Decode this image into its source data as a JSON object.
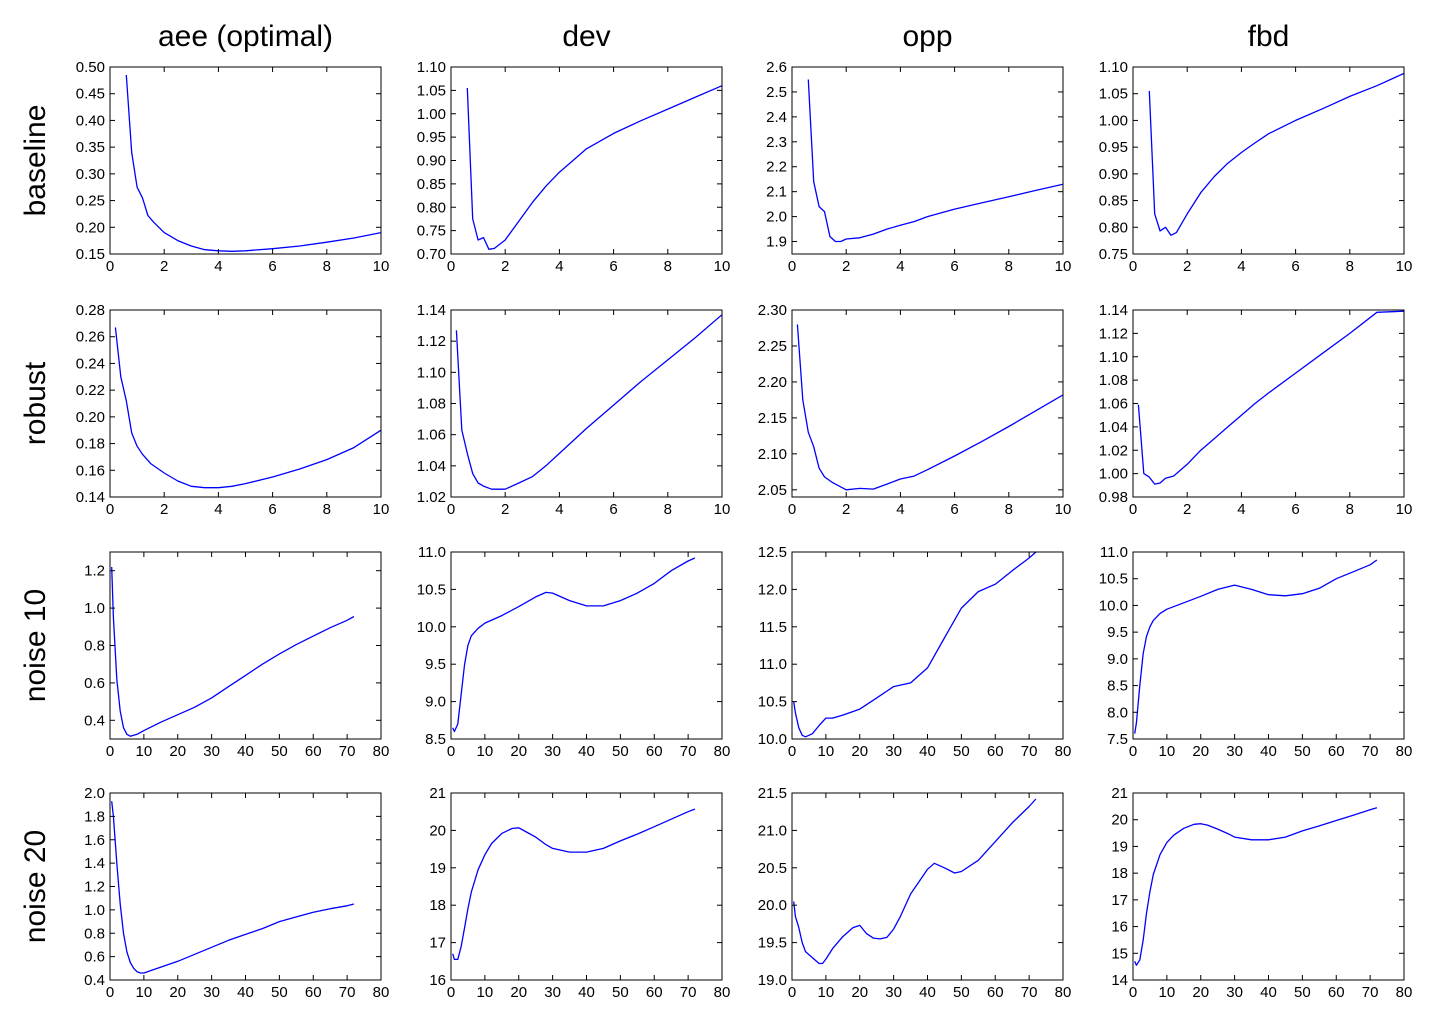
{
  "figure": {
    "column_titles": [
      "aee (optimal)",
      "dev",
      "opp",
      "fbd"
    ],
    "row_titles": [
      "baseline",
      "robust",
      "noise 10",
      "noise 20"
    ],
    "line_color": "#0000ff",
    "grid": false,
    "legend": "none"
  },
  "chart_data": [
    {
      "type": "line",
      "row": 0,
      "col": 0,
      "xlim": [
        0,
        10
      ],
      "ylim": [
        0.15,
        0.5
      ],
      "xticks": [
        0,
        2,
        4,
        6,
        8,
        10
      ],
      "yticks": [
        0.15,
        0.2,
        0.25,
        0.3,
        0.35,
        0.4,
        0.45,
        0.5
      ],
      "ytick_decimals": 2,
      "x": [
        0.6,
        0.8,
        1.0,
        1.2,
        1.4,
        1.6,
        2.0,
        2.5,
        3.0,
        3.5,
        4.0,
        4.5,
        5.0,
        6.0,
        7.0,
        8.0,
        9.0,
        10.0
      ],
      "y": [
        0.485,
        0.34,
        0.275,
        0.255,
        0.222,
        0.21,
        0.19,
        0.175,
        0.165,
        0.158,
        0.156,
        0.155,
        0.156,
        0.16,
        0.165,
        0.172,
        0.18,
        0.19
      ]
    },
    {
      "type": "line",
      "row": 0,
      "col": 1,
      "xlim": [
        0,
        10
      ],
      "ylim": [
        0.7,
        1.1
      ],
      "xticks": [
        0,
        2,
        4,
        6,
        8,
        10
      ],
      "yticks": [
        0.7,
        0.75,
        0.8,
        0.85,
        0.9,
        0.95,
        1.0,
        1.05,
        1.1
      ],
      "ytick_decimals": 2,
      "x": [
        0.6,
        0.8,
        1.0,
        1.2,
        1.4,
        1.6,
        2.0,
        2.5,
        3.0,
        3.5,
        4.0,
        4.5,
        5.0,
        6.0,
        7.0,
        8.0,
        9.0,
        10.0
      ],
      "y": [
        1.055,
        0.775,
        0.73,
        0.735,
        0.71,
        0.712,
        0.73,
        0.77,
        0.81,
        0.845,
        0.875,
        0.9,
        0.925,
        0.958,
        0.985,
        1.01,
        1.035,
        1.06
      ]
    },
    {
      "type": "line",
      "row": 0,
      "col": 2,
      "xlim": [
        0,
        10
      ],
      "ylim": [
        1.85,
        2.6
      ],
      "xticks": [
        0,
        2,
        4,
        6,
        8,
        10
      ],
      "yticks": [
        1.9,
        2.0,
        2.1,
        2.2,
        2.3,
        2.4,
        2.5,
        2.6
      ],
      "ytick_decimals": 1,
      "x": [
        0.6,
        0.8,
        1.0,
        1.2,
        1.4,
        1.6,
        1.8,
        2.0,
        2.5,
        3.0,
        3.5,
        4.0,
        4.5,
        5.0,
        6.0,
        7.0,
        8.0,
        9.0,
        10.0
      ],
      "y": [
        2.55,
        2.14,
        2.04,
        2.02,
        1.92,
        1.9,
        1.9,
        1.91,
        1.915,
        1.93,
        1.95,
        1.965,
        1.98,
        2.0,
        2.03,
        2.055,
        2.08,
        2.105,
        2.13
      ]
    },
    {
      "type": "line",
      "row": 0,
      "col": 3,
      "xlim": [
        0,
        10
      ],
      "ylim": [
        0.75,
        1.1
      ],
      "xticks": [
        0,
        2,
        4,
        6,
        8,
        10
      ],
      "yticks": [
        0.75,
        0.8,
        0.85,
        0.9,
        0.95,
        1.0,
        1.05,
        1.1
      ],
      "ytick_decimals": 2,
      "x": [
        0.6,
        0.8,
        1.0,
        1.2,
        1.4,
        1.6,
        2.0,
        2.5,
        3.0,
        3.5,
        4.0,
        4.5,
        5.0,
        6.0,
        7.0,
        8.0,
        9.0,
        10.0
      ],
      "y": [
        1.055,
        0.825,
        0.793,
        0.8,
        0.785,
        0.79,
        0.825,
        0.865,
        0.895,
        0.92,
        0.94,
        0.958,
        0.975,
        1.0,
        1.022,
        1.045,
        1.065,
        1.088
      ]
    },
    {
      "type": "line",
      "row": 1,
      "col": 0,
      "xlim": [
        0,
        10
      ],
      "ylim": [
        0.14,
        0.28
      ],
      "xticks": [
        0,
        2,
        4,
        6,
        8,
        10
      ],
      "yticks": [
        0.14,
        0.16,
        0.18,
        0.2,
        0.22,
        0.24,
        0.26,
        0.28
      ],
      "ytick_decimals": 2,
      "x": [
        0.2,
        0.4,
        0.6,
        0.8,
        1.0,
        1.2,
        1.5,
        2.0,
        2.5,
        3.0,
        3.5,
        4.0,
        4.5,
        5.0,
        6.0,
        7.0,
        8.0,
        9.0,
        10.0
      ],
      "y": [
        0.267,
        0.23,
        0.212,
        0.188,
        0.178,
        0.172,
        0.165,
        0.158,
        0.152,
        0.148,
        0.147,
        0.147,
        0.148,
        0.15,
        0.155,
        0.161,
        0.168,
        0.177,
        0.19
      ]
    },
    {
      "type": "line",
      "row": 1,
      "col": 1,
      "xlim": [
        0,
        10
      ],
      "ylim": [
        1.02,
        1.14
      ],
      "xticks": [
        0,
        2,
        4,
        6,
        8,
        10
      ],
      "yticks": [
        1.02,
        1.04,
        1.06,
        1.08,
        1.1,
        1.12,
        1.14
      ],
      "ytick_decimals": 2,
      "x": [
        0.2,
        0.4,
        0.6,
        0.8,
        1.0,
        1.2,
        1.5,
        2.0,
        2.5,
        3.0,
        3.5,
        4.0,
        4.5,
        5.0,
        6.0,
        7.0,
        8.0,
        9.0,
        10.0
      ],
      "y": [
        1.127,
        1.063,
        1.048,
        1.035,
        1.029,
        1.027,
        1.025,
        1.025,
        1.029,
        1.033,
        1.04,
        1.048,
        1.056,
        1.064,
        1.079,
        1.094,
        1.108,
        1.122,
        1.137
      ]
    },
    {
      "type": "line",
      "row": 1,
      "col": 2,
      "xlim": [
        0,
        10
      ],
      "ylim": [
        2.04,
        2.3
      ],
      "xticks": [
        0,
        2,
        4,
        6,
        8,
        10
      ],
      "yticks": [
        2.05,
        2.1,
        2.15,
        2.2,
        2.25,
        2.3
      ],
      "ytick_decimals": 2,
      "x": [
        0.2,
        0.4,
        0.6,
        0.8,
        1.0,
        1.2,
        1.5,
        2.0,
        2.5,
        3.0,
        3.5,
        4.0,
        4.5,
        5.0,
        6.0,
        7.0,
        8.0,
        9.0,
        10.0
      ],
      "y": [
        2.28,
        2.175,
        2.13,
        2.11,
        2.08,
        2.068,
        2.06,
        2.05,
        2.052,
        2.051,
        2.058,
        2.065,
        2.069,
        2.078,
        2.097,
        2.117,
        2.138,
        2.16,
        2.182
      ]
    },
    {
      "type": "line",
      "row": 1,
      "col": 3,
      "xlim": [
        0,
        10
      ],
      "ylim": [
        0.98,
        1.14
      ],
      "xticks": [
        0,
        2,
        4,
        6,
        8,
        10
      ],
      "yticks": [
        0.98,
        1.0,
        1.02,
        1.04,
        1.06,
        1.08,
        1.1,
        1.12,
        1.14
      ],
      "ytick_decimals": 2,
      "x": [
        0.2,
        0.4,
        0.6,
        0.8,
        1.0,
        1.2,
        1.5,
        2.0,
        2.5,
        3.0,
        3.5,
        4.0,
        4.5,
        5.0,
        6.0,
        7.0,
        8.0,
        9.0,
        10.0
      ],
      "y": [
        1.059,
        1.0,
        0.997,
        0.991,
        0.992,
        0.996,
        0.998,
        1.008,
        1.02,
        1.03,
        1.04,
        1.05,
        1.06,
        1.069,
        1.086,
        1.103,
        1.12,
        1.138,
        1.139
      ]
    },
    {
      "type": "line",
      "row": 2,
      "col": 0,
      "xlim": [
        0,
        80
      ],
      "ylim": [
        0.3,
        1.3
      ],
      "xticks": [
        0,
        10,
        20,
        30,
        40,
        50,
        60,
        70,
        80
      ],
      "yticks": [
        0.4,
        0.6,
        0.8,
        1.0,
        1.2
      ],
      "ytick_decimals": 1,
      "x": [
        0.5,
        1,
        2,
        3,
        4,
        5,
        6,
        8,
        10,
        15,
        20,
        25,
        30,
        35,
        40,
        45,
        50,
        55,
        60,
        65,
        70,
        72
      ],
      "y": [
        1.22,
        0.95,
        0.62,
        0.45,
        0.36,
        0.325,
        0.315,
        0.325,
        0.345,
        0.39,
        0.43,
        0.47,
        0.52,
        0.58,
        0.64,
        0.7,
        0.755,
        0.805,
        0.85,
        0.895,
        0.935,
        0.955
      ]
    },
    {
      "type": "line",
      "row": 2,
      "col": 1,
      "xlim": [
        0,
        80
      ],
      "ylim": [
        8.5,
        11.0
      ],
      "xticks": [
        0,
        10,
        20,
        30,
        40,
        50,
        60,
        70,
        80
      ],
      "yticks": [
        8.5,
        9.0,
        9.5,
        10.0,
        10.5,
        11.0
      ],
      "ytick_decimals": 1,
      "x": [
        0.5,
        1,
        2,
        3,
        4,
        5,
        6,
        8,
        10,
        15,
        20,
        25,
        28,
        30,
        35,
        40,
        45,
        50,
        55,
        60,
        65,
        70,
        72
      ],
      "y": [
        8.65,
        8.6,
        8.7,
        9.1,
        9.5,
        9.75,
        9.88,
        9.98,
        10.05,
        10.15,
        10.27,
        10.4,
        10.46,
        10.45,
        10.35,
        10.28,
        10.28,
        10.35,
        10.45,
        10.58,
        10.75,
        10.88,
        10.92
      ]
    },
    {
      "type": "line",
      "row": 2,
      "col": 2,
      "xlim": [
        0,
        80
      ],
      "ylim": [
        10.0,
        12.5
      ],
      "xticks": [
        0,
        10,
        20,
        30,
        40,
        50,
        60,
        70,
        80
      ],
      "yticks": [
        10.0,
        10.5,
        11.0,
        11.5,
        12.0,
        12.5
      ],
      "ytick_decimals": 1,
      "x": [
        0.5,
        1,
        2,
        3,
        4,
        6,
        8,
        10,
        12,
        15,
        20,
        25,
        30,
        35,
        40,
        45,
        50,
        55,
        60,
        65,
        70,
        72
      ],
      "y": [
        10.5,
        10.35,
        10.15,
        10.05,
        10.03,
        10.07,
        10.18,
        10.28,
        10.28,
        10.32,
        10.4,
        10.55,
        10.7,
        10.75,
        10.95,
        11.35,
        11.75,
        11.97,
        12.07,
        12.25,
        12.42,
        12.5
      ]
    },
    {
      "type": "line",
      "row": 2,
      "col": 3,
      "xlim": [
        0,
        80
      ],
      "ylim": [
        7.5,
        11.0
      ],
      "xticks": [
        0,
        10,
        20,
        30,
        40,
        50,
        60,
        70,
        80
      ],
      "yticks": [
        7.5,
        8.0,
        8.5,
        9.0,
        9.5,
        10.0,
        10.5,
        11.0
      ],
      "ytick_decimals": 1,
      "x": [
        0.5,
        1,
        2,
        3,
        4,
        5,
        6,
        8,
        10,
        15,
        20,
        25,
        30,
        35,
        40,
        45,
        50,
        55,
        60,
        65,
        70,
        72
      ],
      "y": [
        7.6,
        7.8,
        8.5,
        9.1,
        9.42,
        9.6,
        9.72,
        9.85,
        9.93,
        10.05,
        10.17,
        10.3,
        10.38,
        10.3,
        10.2,
        10.18,
        10.22,
        10.32,
        10.5,
        10.63,
        10.76,
        10.85
      ]
    },
    {
      "type": "line",
      "row": 3,
      "col": 0,
      "xlim": [
        0,
        80
      ],
      "ylim": [
        0.4,
        2.0
      ],
      "xticks": [
        0,
        10,
        20,
        30,
        40,
        50,
        60,
        70,
        80
      ],
      "yticks": [
        0.4,
        0.6,
        0.8,
        1.0,
        1.2,
        1.4,
        1.6,
        1.8,
        2.0
      ],
      "ytick_decimals": 1,
      "x": [
        0.5,
        1,
        2,
        3,
        4,
        5,
        6,
        7,
        8,
        9,
        10,
        12,
        15,
        20,
        25,
        30,
        35,
        40,
        45,
        50,
        55,
        60,
        65,
        70,
        72
      ],
      "y": [
        1.93,
        1.8,
        1.4,
        1.05,
        0.8,
        0.64,
        0.55,
        0.5,
        0.47,
        0.46,
        0.46,
        0.48,
        0.51,
        0.56,
        0.62,
        0.68,
        0.74,
        0.79,
        0.84,
        0.9,
        0.94,
        0.98,
        1.01,
        1.035,
        1.05
      ]
    },
    {
      "type": "line",
      "row": 3,
      "col": 1,
      "xlim": [
        0,
        80
      ],
      "ylim": [
        16,
        21
      ],
      "xticks": [
        0,
        10,
        20,
        30,
        40,
        50,
        60,
        70,
        80
      ],
      "yticks": [
        16,
        17,
        18,
        19,
        20,
        21
      ],
      "ytick_decimals": 0,
      "x": [
        0.5,
        1,
        2,
        3,
        4,
        5,
        6,
        8,
        10,
        12,
        15,
        18,
        20,
        22,
        25,
        28,
        30,
        35,
        40,
        45,
        50,
        55,
        60,
        65,
        70,
        72
      ],
      "y": [
        16.7,
        16.55,
        16.55,
        16.9,
        17.4,
        17.9,
        18.35,
        18.95,
        19.35,
        19.65,
        19.92,
        20.05,
        20.07,
        19.97,
        19.82,
        19.62,
        19.52,
        19.42,
        19.42,
        19.52,
        19.72,
        19.9,
        20.1,
        20.3,
        20.5,
        20.57
      ]
    },
    {
      "type": "line",
      "row": 3,
      "col": 2,
      "xlim": [
        0,
        80
      ],
      "ylim": [
        19.0,
        21.5
      ],
      "xticks": [
        0,
        10,
        20,
        30,
        40,
        50,
        60,
        70,
        80
      ],
      "yticks": [
        19.0,
        19.5,
        20.0,
        20.5,
        21.0,
        21.5
      ],
      "ytick_decimals": 1,
      "x": [
        0.5,
        1,
        2,
        3,
        4,
        6,
        8,
        9,
        10,
        12,
        15,
        18,
        20,
        22,
        24,
        26,
        28,
        30,
        32,
        35,
        40,
        42,
        45,
        48,
        50,
        55,
        60,
        65,
        70,
        72
      ],
      "y": [
        20.05,
        19.85,
        19.7,
        19.5,
        19.38,
        19.3,
        19.22,
        19.22,
        19.28,
        19.42,
        19.58,
        19.7,
        19.73,
        19.62,
        19.56,
        19.55,
        19.57,
        19.68,
        19.85,
        20.15,
        20.48,
        20.56,
        20.5,
        20.43,
        20.45,
        20.6,
        20.85,
        21.1,
        21.32,
        21.42
      ]
    },
    {
      "type": "line",
      "row": 3,
      "col": 3,
      "xlim": [
        0,
        80
      ],
      "ylim": [
        14,
        21
      ],
      "xticks": [
        0,
        10,
        20,
        30,
        40,
        50,
        60,
        70,
        80
      ],
      "yticks": [
        14,
        15,
        16,
        17,
        18,
        19,
        20,
        21
      ],
      "ytick_decimals": 0,
      "x": [
        0.5,
        1,
        2,
        3,
        4,
        5,
        6,
        8,
        10,
        12,
        15,
        18,
        20,
        22,
        25,
        28,
        30,
        35,
        40,
        45,
        50,
        55,
        60,
        65,
        70,
        72
      ],
      "y": [
        14.7,
        14.55,
        14.75,
        15.5,
        16.5,
        17.3,
        17.95,
        18.7,
        19.15,
        19.42,
        19.68,
        19.83,
        19.85,
        19.8,
        19.65,
        19.48,
        19.35,
        19.25,
        19.25,
        19.35,
        19.58,
        19.77,
        19.97,
        20.17,
        20.37,
        20.45
      ]
    }
  ]
}
